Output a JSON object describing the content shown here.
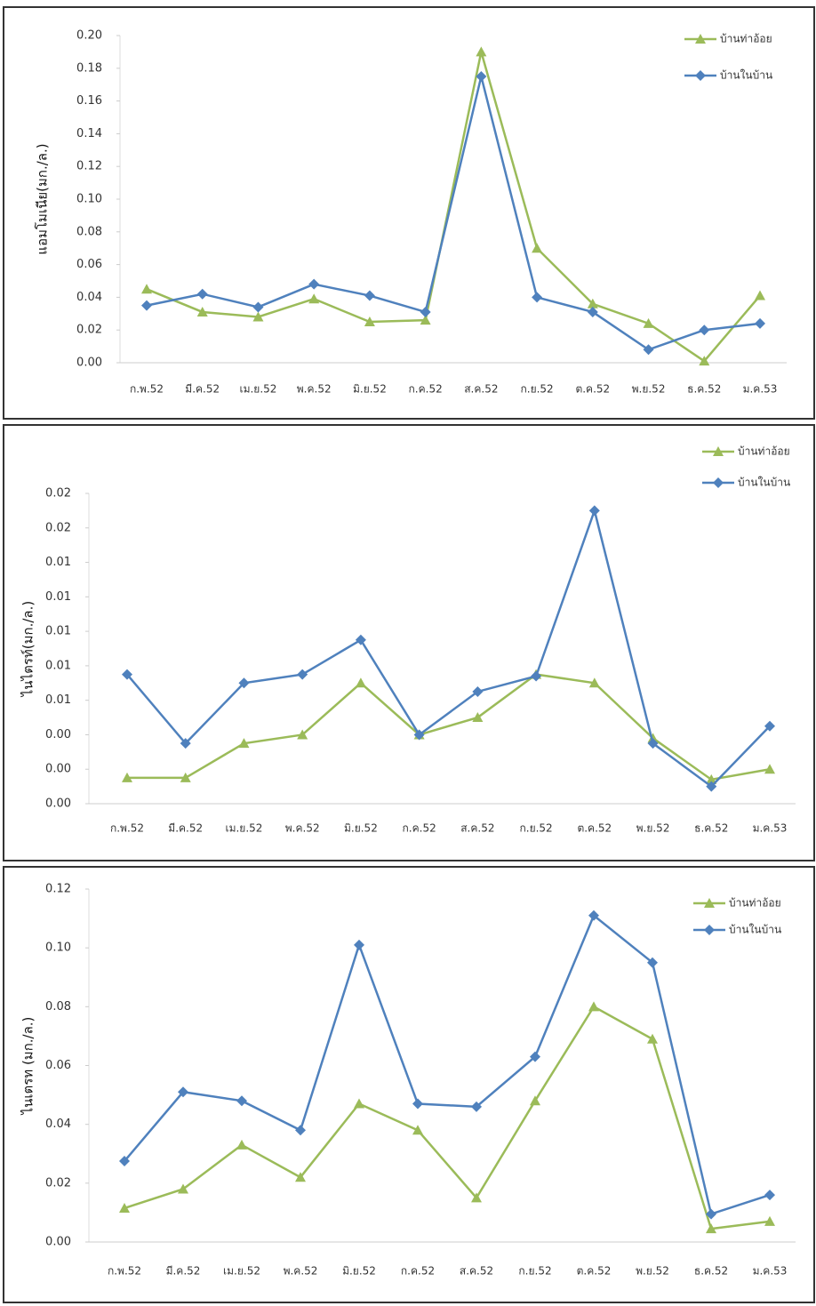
{
  "chart_data": [
    {
      "type": "line",
      "y_label": "แอมโมเนีย(มก./ล.)",
      "categories": [
        "ก.พ.52",
        "มี.ค.52",
        "เม.ย.52",
        "พ.ค.52",
        "มิ.ย.52",
        "ก.ค.52",
        "ส.ค.52",
        "ก.ย.52",
        "ต.ค.52",
        "พ.ย.52",
        "ธ.ค.52",
        "ม.ค.53"
      ],
      "ylim": [
        0,
        0.2
      ],
      "yticks": [
        {
          "value": 0,
          "label": "0.00"
        },
        0.02,
        0.04,
        0.06,
        0.08,
        {
          "value": 0.1,
          "label": "0.10"
        },
        0.12,
        0.14,
        0.16,
        0.18,
        {
          "value": 0.2,
          "label": "0.20"
        }
      ],
      "series": [
        {
          "name": "บ้านท่าอ้อย",
          "color": "#9bbb59",
          "marker": "triangle",
          "values": [
            0.045,
            0.031,
            0.028,
            0.039,
            0.025,
            0.026,
            0.19,
            0.07,
            0.036,
            0.024,
            0.001,
            0.041
          ]
        },
        {
          "name": "บ้านในบ้าน",
          "color": "#4f81bd",
          "marker": "diamond",
          "values": [
            0.035,
            0.042,
            0.034,
            0.048,
            0.041,
            0.031,
            0.175,
            0.04,
            0.031,
            0.008,
            0.02,
            0.024
          ]
        }
      ]
    },
    {
      "type": "line",
      "y_label": "ไนไตรท์(มก./ล.)",
      "categories": [
        "ก.พ.52",
        "มี.ค.52",
        "เม.ย.52",
        "พ.ค.52",
        "มิ.ย.52",
        "ก.ค.52",
        "ส.ค.52",
        "ก.ย.52",
        "ต.ค.52",
        "พ.ย.52",
        "ธ.ค.52",
        "ม.ค.53"
      ],
      "ylim": [
        0,
        0.018
      ],
      "yticks": [
        {
          "value": 0,
          "label": "0.00"
        },
        {
          "value": 0.002,
          "label": "0.00"
        },
        {
          "value": 0.004,
          "label": "0.00"
        },
        {
          "value": 0.006,
          "label": "0.01"
        },
        {
          "value": 0.008,
          "label": "0.01"
        },
        {
          "value": 0.01,
          "label": "0.01"
        },
        {
          "value": 0.012,
          "label": "0.01"
        },
        {
          "value": 0.014,
          "label": "0.01"
        },
        {
          "value": 0.016,
          "label": "0.02"
        },
        {
          "value": 0.018,
          "label": "0.02"
        }
      ],
      "series": [
        {
          "name": "บ้านท่าอ้อย",
          "color": "#9bbb59",
          "marker": "triangle",
          "values": [
            0.0015,
            0.0015,
            0.0035,
            0.004,
            0.007,
            0.004,
            0.005,
            0.0075,
            0.007,
            0.0038,
            0.0014,
            0.002
          ]
        },
        {
          "name": "บ้านในบ้าน",
          "color": "#4f81bd",
          "marker": "diamond",
          "values": [
            0.0075,
            0.0035,
            0.007,
            0.0075,
            0.0095,
            0.004,
            0.0065,
            0.0074,
            0.017,
            0.0035,
            0.001,
            0.0045
          ]
        }
      ]
    },
    {
      "type": "line",
      "y_label": "ไนเตรท (มก./ล.)",
      "categories": [
        "ก.พ.52",
        "มี.ค.52",
        "เม.ย.52",
        "พ.ค.52",
        "มิ.ย.52",
        "ก.ค.52",
        "ส.ค.52",
        "ก.ย.52",
        "ต.ค.52",
        "พ.ย.52",
        "ธ.ค.52",
        "ม.ค.53"
      ],
      "ylim": [
        0,
        0.12
      ],
      "yticks": [
        {
          "value": 0,
          "label": "0.00"
        },
        0.02,
        0.04,
        0.06,
        0.08,
        {
          "value": 0.1,
          "label": "0.10"
        },
        0.12
      ],
      "series": [
        {
          "name": "บ้านท่าอ้อย",
          "color": "#9bbb59",
          "marker": "triangle",
          "values": [
            0.0115,
            0.018,
            0.033,
            0.022,
            0.047,
            0.038,
            0.015,
            0.048,
            0.08,
            0.069,
            0.0045,
            0.007
          ]
        },
        {
          "name": "บ้านในบ้าน",
          "color": "#4f81bd",
          "marker": "diamond",
          "values": [
            0.0275,
            0.051,
            0.048,
            0.038,
            0.101,
            0.047,
            0.046,
            0.063,
            0.111,
            0.095,
            0.0095,
            0.016
          ]
        }
      ]
    }
  ]
}
